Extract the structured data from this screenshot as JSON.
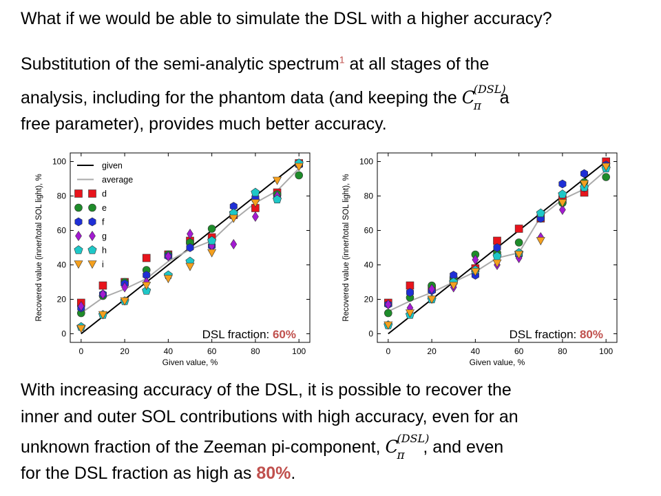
{
  "heading": "What if we would be able to simulate the DSL with a higher accuracy?",
  "para1": {
    "line1_a": "Substitution of the semi-analytic spectrum",
    "line1_footnote": "1",
    "line1_b": " at all stages of the",
    "line2_a": "analysis, including for the phantom data (and keeping the ",
    "line2_b": " a",
    "line3": "free parameter), provides much better accuracy."
  },
  "symbol": {
    "base": "C",
    "sup": "(DSL)",
    "sub": "π"
  },
  "para2": {
    "line1": "With increasing accuracy of the DSL, it is possible to recover the",
    "line2": "inner and outer SOL contributions with high accuracy, even for an",
    "line3_a": "unknown fraction of the Zeeman pi-component, ",
    "line3_b": " , and even",
    "line4_a": "for the DSL fraction as high as ",
    "line4_b": "80%",
    "line4_c": "."
  },
  "colors": {
    "d": "#e8141c",
    "e": "#1e8c2a",
    "f": "#1f2fd6",
    "g": "#a31ad1",
    "h": "#1ec7c7",
    "i": "#f5a01e",
    "given": "#000000",
    "average": "#aaaaaa",
    "accent": "#c0504d"
  },
  "chart_data": [
    {
      "type": "scatter",
      "xlabel": "Given value, %",
      "ylabel": "Recovered value (inner/total SOL light), %",
      "xlim": [
        -5,
        105
      ],
      "ylim": [
        -5,
        105
      ],
      "xticks": [
        0,
        20,
        40,
        60,
        80,
        100
      ],
      "yticks": [
        0,
        20,
        40,
        60,
        80,
        100
      ],
      "annotation_label": "DSL fraction: ",
      "annotation_value": "60%",
      "legend_position": "top-left",
      "legend": [
        {
          "name": "given",
          "kind": "line"
        },
        {
          "name": "average",
          "kind": "line"
        },
        {
          "name": "d",
          "marker": "square"
        },
        {
          "name": "e",
          "marker": "circle"
        },
        {
          "name": "f",
          "marker": "hexagon"
        },
        {
          "name": "g",
          "marker": "diamond"
        },
        {
          "name": "h",
          "marker": "pentagon"
        },
        {
          "name": "i",
          "marker": "triangle-down"
        }
      ],
      "x": [
        0,
        10,
        20,
        30,
        40,
        50,
        60,
        70,
        80,
        90,
        100
      ],
      "lines": [
        {
          "name": "given",
          "values": [
            0,
            10,
            20,
            30,
            40,
            50,
            60,
            70,
            80,
            90,
            100
          ]
        },
        {
          "name": "average",
          "values": [
            12,
            21,
            26,
            32,
            42,
            49,
            54,
            66,
            76,
            83,
            96
          ]
        }
      ],
      "series": [
        {
          "name": "d",
          "values": [
            18,
            28,
            30,
            44,
            46,
            54,
            56,
            69,
            73,
            82,
            99
          ]
        },
        {
          "name": "e",
          "values": [
            12,
            22,
            30,
            37,
            46,
            53,
            61,
            69,
            78,
            81,
            92
          ]
        },
        {
          "name": "f",
          "values": [
            15,
            23,
            29,
            34,
            45,
            50,
            51,
            74,
            79,
            79,
            98
          ]
        },
        {
          "name": "g",
          "values": [
            16,
            23,
            27,
            30,
            45,
            58,
            51,
            52,
            68,
            80,
            98
          ]
        },
        {
          "name": "h",
          "values": [
            4,
            11,
            19,
            25,
            34,
            42,
            54,
            70,
            82,
            78,
            99
          ]
        },
        {
          "name": "i",
          "values": [
            3,
            11,
            19,
            28,
            32,
            39,
            47,
            67,
            76,
            89,
            97
          ]
        }
      ]
    },
    {
      "type": "scatter",
      "xlabel": "Given value, %",
      "ylabel": "Recovered value (inner/total SOL light), %",
      "xlim": [
        -5,
        105
      ],
      "ylim": [
        -5,
        105
      ],
      "xticks": [
        0,
        20,
        40,
        60,
        80,
        100
      ],
      "yticks": [
        0,
        20,
        40,
        60,
        80,
        100
      ],
      "annotation_label": "DSL fraction: ",
      "annotation_value": "80%",
      "x": [
        0,
        10,
        20,
        30,
        40,
        50,
        60,
        70,
        80,
        90,
        100
      ],
      "lines": [
        {
          "name": "given",
          "values": [
            0,
            10,
            20,
            30,
            40,
            50,
            60,
            70,
            80,
            90,
            100
          ]
        },
        {
          "name": "average",
          "values": [
            13,
            19,
            24,
            30,
            36,
            44,
            47,
            68,
            78,
            84,
            95
          ]
        }
      ],
      "series": [
        {
          "name": "d",
          "values": [
            18,
            28,
            26,
            31,
            38,
            54,
            61,
            67,
            78,
            82,
            100
          ]
        },
        {
          "name": "e",
          "values": [
            12,
            21,
            28,
            32,
            46,
            47,
            53,
            67,
            76,
            88,
            91
          ]
        },
        {
          "name": "f",
          "values": [
            17,
            24,
            25,
            34,
            34,
            50,
            46,
            67,
            87,
            93,
            98
          ]
        },
        {
          "name": "g",
          "values": [
            17,
            15,
            26,
            27,
            43,
            40,
            44,
            56,
            72,
            85,
            97
          ]
        },
        {
          "name": "h",
          "values": [
            5,
            11,
            20,
            30,
            37,
            45,
            47,
            70,
            81,
            85,
            96
          ]
        },
        {
          "name": "i",
          "values": [
            5,
            12,
            20,
            28,
            36,
            41,
            46,
            54,
            76,
            87,
            97
          ]
        }
      ]
    }
  ]
}
